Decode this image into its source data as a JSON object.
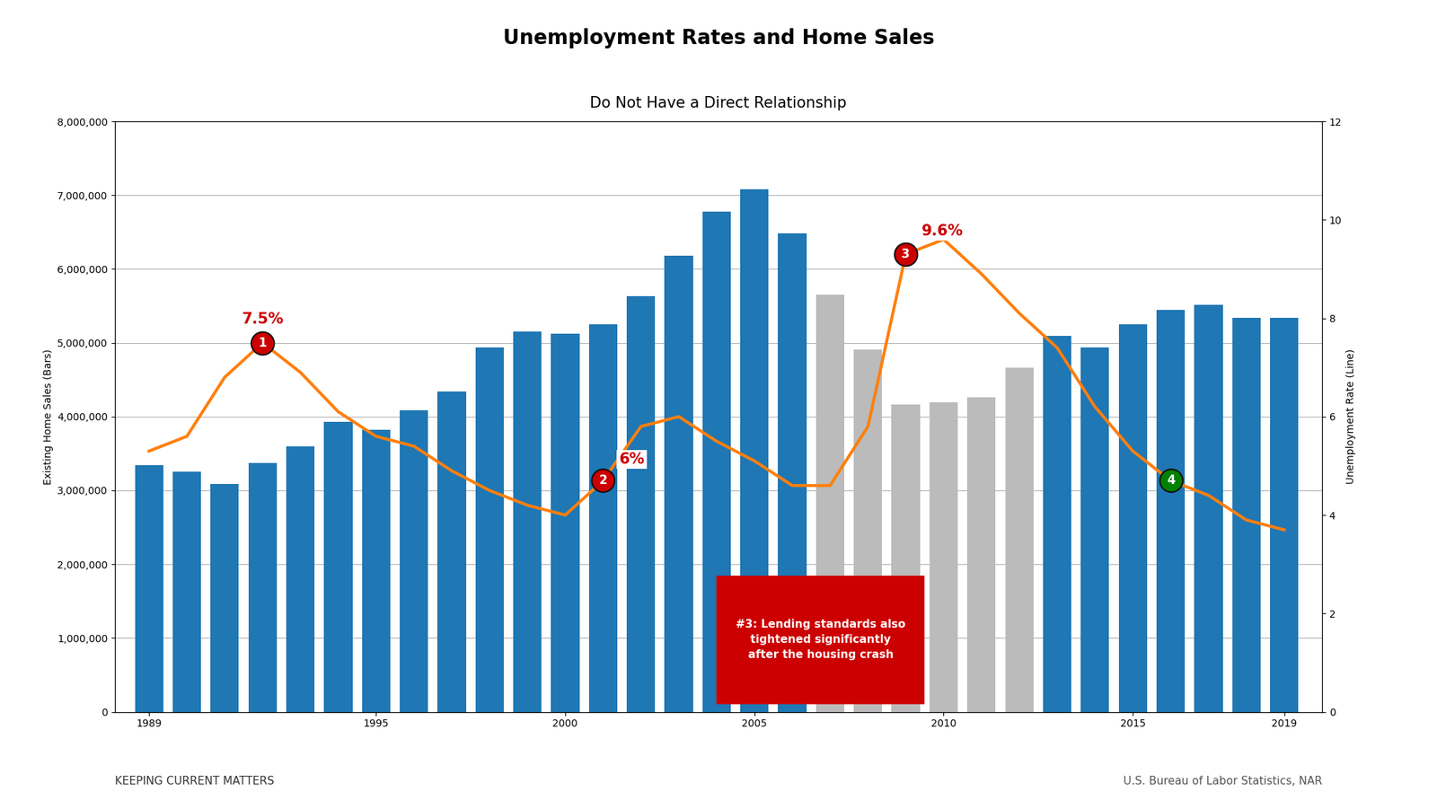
{
  "chart_data": {
    "type": "bar",
    "title": "Unemployment Rates and Home Sales",
    "subtitle": "Do Not Have a Direct Relationship",
    "x": [
      1989,
      1990,
      1991,
      1992,
      1993,
      1994,
      1995,
      1996,
      1997,
      1998,
      1999,
      2000,
      2001,
      2002,
      2003,
      2004,
      2005,
      2006,
      2007,
      2008,
      2009,
      2010,
      2011,
      2012,
      2013,
      2014,
      2015,
      2016,
      2017,
      2018,
      2019
    ],
    "series": [
      {
        "type": "bar",
        "values": [
          3340000,
          3250000,
          3090000,
          3370000,
          3600000,
          3930000,
          3820000,
          4090000,
          4340000,
          4940000,
          5150000,
          5120000,
          5250000,
          5630000,
          6180000,
          6780000,
          7080000,
          6480000,
          5650000,
          4910000,
          4160000,
          4190000,
          4260000,
          4660000,
          5090000,
          4940000,
          5250000,
          5450000,
          5510000,
          5340000,
          5340000
        ],
        "colors": [
          "#1f77b4",
          "#1f77b4",
          "#1f77b4",
          "#1f77b4",
          "#1f77b4",
          "#1f77b4",
          "#1f77b4",
          "#1f77b4",
          "#1f77b4",
          "#1f77b4",
          "#1f77b4",
          "#1f77b4",
          "#1f77b4",
          "#1f77b4",
          "#1f77b4",
          "#1f77b4",
          "#1f77b4",
          "#1f77b4",
          "#BBBBBB",
          "#BBBBBB",
          "#BBBBBB",
          "#BBBBBB",
          "#BBBBBB",
          "#BBBBBB",
          "#1f77b4",
          "#1f77b4",
          "#1f77b4",
          "#1f77b4",
          "#1f77b4",
          "#1f77b4",
          "#1f77b4"
        ]
      },
      {
        "type": "line",
        "axis": "y2",
        "color": "#ff7f0e",
        "values": [
          5.3,
          5.6,
          6.8,
          7.5,
          6.9,
          6.1,
          5.6,
          5.4,
          4.9,
          4.5,
          4.2,
          4.0,
          4.7,
          5.8,
          6.0,
          5.5,
          5.1,
          4.6,
          4.6,
          5.8,
          9.3,
          9.6,
          8.9,
          8.1,
          7.4,
          6.2,
          5.3,
          4.7,
          4.4,
          3.9,
          3.7
        ]
      }
    ],
    "ylabel": "Existing Home Sales (Bars)",
    "y2label": "Unemployment Rate (Line)",
    "xlim": [
      1988.1,
      2020
    ],
    "xticks": [
      1989,
      1995,
      2000,
      2005,
      2010,
      2015,
      2019
    ],
    "ylim": [
      0,
      8000000
    ],
    "yticks": [
      0,
      {
        "value": 1000000,
        "label": "1,000,000"
      },
      {
        "value": 2000000,
        "label": "2,000,000"
      },
      {
        "value": 3000000,
        "label": "3,000,000"
      },
      {
        "value": 4000000,
        "label": "4,000,000"
      },
      {
        "value": 5000000,
        "label": "5,000,000"
      },
      {
        "value": 6000000,
        "label": "6,000,000"
      },
      {
        "value": 7000000,
        "label": "7,000,000"
      },
      {
        "value": 8000000,
        "label": "8,000,000"
      }
    ],
    "y2lim": [
      0,
      12
    ],
    "y2ticks": [
      0,
      2,
      4,
      6,
      8,
      10,
      12
    ],
    "grid": true,
    "annotations": [
      {
        "x": 1992,
        "y": 7.5,
        "axis": "y2",
        "label": "1",
        "text": "7.5%",
        "color": "#CC0000"
      },
      {
        "x": 2001,
        "y": 4.7,
        "axis": "y2",
        "label": "2",
        "text": "6%",
        "color": "#CC0000"
      },
      {
        "x": 2009,
        "y": 9.3,
        "axis": "y2",
        "label": "3",
        "text": "9.6%",
        "color": "#CC0000"
      },
      {
        "x": 2016,
        "y": 4.7,
        "axis": "y2",
        "label": "4",
        "color": "#008000"
      }
    ],
    "note": {
      "text": "#3: Lending standards also\ntightened significantly\nafter the housing crash",
      "x": [
        2004.0,
        2009.5
      ],
      "y": [
        100000,
        1850000
      ],
      "color": "#CC0000"
    },
    "source": "U.S. Bureau of Labor Statistics, NAR",
    "credit": "KEEPING CURRENT MATTERS"
  }
}
